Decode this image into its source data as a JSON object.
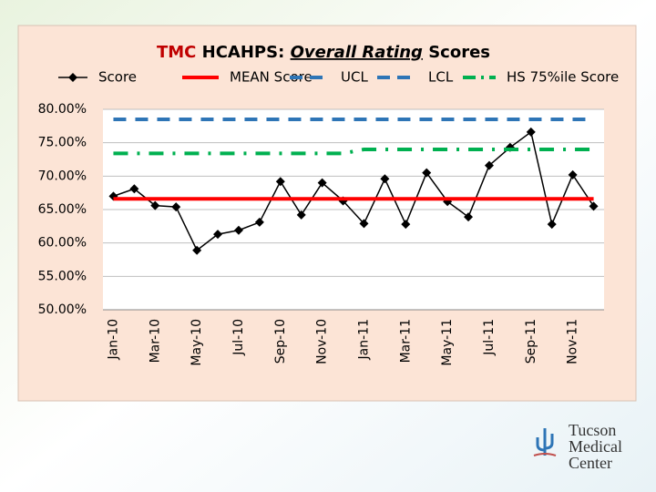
{
  "chart_data": {
    "type": "line",
    "title": [
      "TMC",
      "HCAHPS:",
      "Overall Rating",
      "Scores"
    ],
    "categories": [
      "Jan-10",
      null,
      "Mar-10",
      null,
      "May-10",
      null,
      "Jul-10",
      null,
      "Sep-10",
      null,
      "Nov-10",
      null,
      "Jan-11",
      null,
      "Mar-11",
      null,
      "May-11",
      null,
      "Jul-11",
      null,
      "Sep-11",
      null,
      "Nov-11",
      null
    ],
    "series": [
      {
        "name": "Score",
        "color": "#000000",
        "style": "solid",
        "marker": "diamond",
        "values": [
          67.0,
          68.1,
          65.6,
          65.4,
          58.9,
          61.3,
          61.9,
          63.1,
          69.2,
          64.2,
          69.0,
          66.3,
          62.9,
          69.6,
          62.8,
          70.5,
          66.2,
          63.9,
          71.6,
          74.3,
          76.6,
          62.8,
          70.2,
          65.5
        ]
      },
      {
        "name": "MEAN Score",
        "color": "#ff0000",
        "style": "solid",
        "values": [
          66.6,
          66.6,
          66.6,
          66.6,
          66.6,
          66.6,
          66.6,
          66.6,
          66.6,
          66.6,
          66.6,
          66.6,
          66.6,
          66.6,
          66.6,
          66.6,
          66.6,
          66.6,
          66.6,
          66.6,
          66.6,
          66.6,
          66.6,
          66.6
        ]
      },
      {
        "name": "UCL",
        "color": "#2e75b6",
        "style": "dash",
        "values": [
          78.5,
          78.5,
          78.5,
          78.5,
          78.5,
          78.5,
          78.5,
          78.5,
          78.5,
          78.5,
          78.5,
          78.5,
          78.5,
          78.5,
          78.5,
          78.5,
          78.5,
          78.5,
          78.5,
          78.5,
          78.5,
          78.5,
          78.5,
          78.5
        ]
      },
      {
        "name": "LCL",
        "color": "#2e75b6",
        "style": "dash",
        "values": [
          null,
          null,
          null,
          null,
          null,
          null,
          null,
          null,
          null,
          null,
          null,
          null,
          null,
          null,
          null,
          null,
          null,
          null,
          null,
          null,
          null,
          null,
          null,
          null
        ]
      },
      {
        "name": "HS 75%ile Score",
        "color": "#00b050",
        "style": "dashdot",
        "values": [
          73.4,
          73.4,
          73.4,
          73.4,
          73.4,
          73.4,
          73.4,
          73.4,
          73.4,
          73.4,
          73.4,
          73.4,
          74.0,
          74.0,
          74.0,
          74.0,
          74.0,
          74.0,
          74.0,
          74.0,
          74.0,
          74.0,
          74.0,
          74.0
        ]
      }
    ],
    "ylim": [
      50,
      80
    ],
    "yticks": [
      {
        "value": 50,
        "label": "50.00%"
      },
      {
        "value": 55,
        "label": "55.00%"
      },
      {
        "value": 60,
        "label": "60.00%"
      },
      {
        "value": 65,
        "label": "65.00%"
      },
      {
        "value": 70,
        "label": "70.00%"
      },
      {
        "value": 75,
        "label": "75.00%"
      },
      {
        "value": 80,
        "label": "80.00%"
      }
    ],
    "grid": true,
    "legend": "top"
  },
  "logo": [
    "Tucson",
    "Medical",
    "Center"
  ]
}
